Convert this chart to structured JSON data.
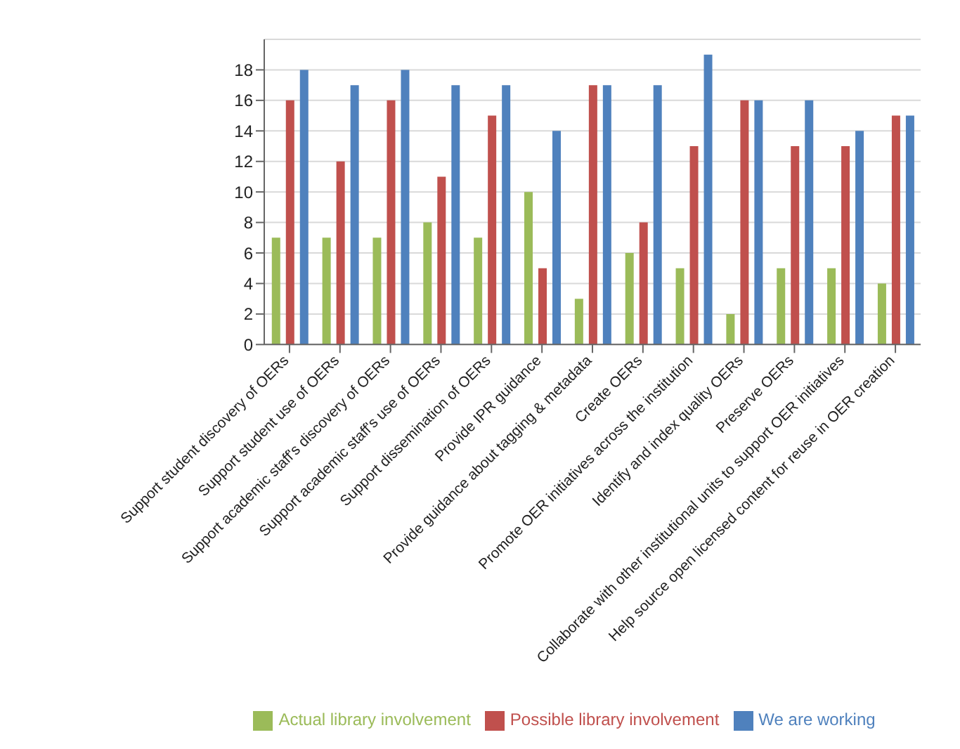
{
  "chart_data": {
    "type": "bar",
    "categories": [
      "Support student discovery of OERs",
      "Support student use of OERs",
      "Support academic staff's discovery of OERs",
      "Support academic staff's use of OERs",
      "Support dissemination of OERs",
      "Provide IPR guidance",
      "Provide guidance about tagging & metadata",
      "Create OERs",
      "Promote OER initiatives across the institution",
      "Identify and index quality OERs",
      "Preserve OERs",
      "Collaborate with other institutional units to support OER initiatives",
      "Help source open licensed content for reuse in  OER creation"
    ],
    "series": [
      {
        "name": "Actual library involvement",
        "color": "#9bbb59",
        "values": [
          7,
          7,
          7,
          8,
          7,
          10,
          3,
          6,
          5,
          2,
          5,
          5,
          4
        ]
      },
      {
        "name": "Possible library involvement",
        "color": "#c0504d",
        "values": [
          16,
          12,
          16,
          11,
          15,
          5,
          17,
          8,
          13,
          16,
          13,
          13,
          15
        ]
      },
      {
        "name": "We are working",
        "color": "#4f81bd",
        "values": [
          18,
          17,
          18,
          17,
          17,
          14,
          17,
          17,
          19,
          16,
          16,
          14,
          15
        ]
      }
    ],
    "ylim": [
      0,
      20
    ],
    "yticks": [
      0,
      2,
      4,
      6,
      8,
      10,
      12,
      14,
      16,
      18
    ],
    "grid": "y",
    "legend": "bottom"
  }
}
